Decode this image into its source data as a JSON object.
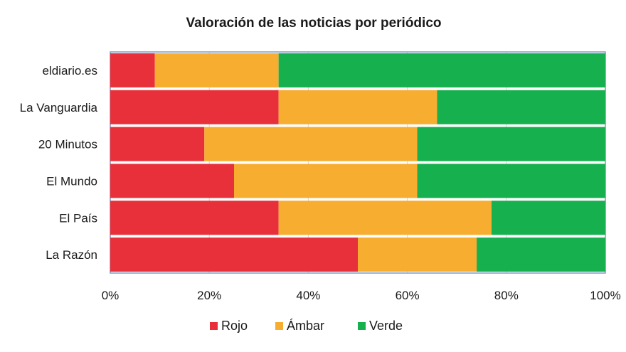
{
  "chart_data": {
    "type": "bar",
    "orientation": "horizontal",
    "stacked": "percent",
    "title": "Valoración de las noticias por periódico",
    "categories": [
      "eldiario.es",
      "La Vanguardia",
      "20 Minutos",
      "El Mundo",
      "El País",
      "La Razón"
    ],
    "series": [
      {
        "name": "Rojo",
        "color": "#e8303a",
        "values": [
          9,
          34,
          19,
          25,
          34,
          50
        ]
      },
      {
        "name": "Ámbar",
        "color": "#f7ad2f",
        "values": [
          25,
          32,
          43,
          37,
          43,
          24
        ]
      },
      {
        "name": "Verde",
        "color": "#17b04f",
        "values": [
          66,
          34,
          38,
          38,
          23,
          26
        ]
      }
    ],
    "xlim": [
      0,
      100
    ],
    "xticks": [
      "0%",
      "20%",
      "40%",
      "60%",
      "80%",
      "100%"
    ],
    "grid": "vertical",
    "legend": "bottom"
  }
}
